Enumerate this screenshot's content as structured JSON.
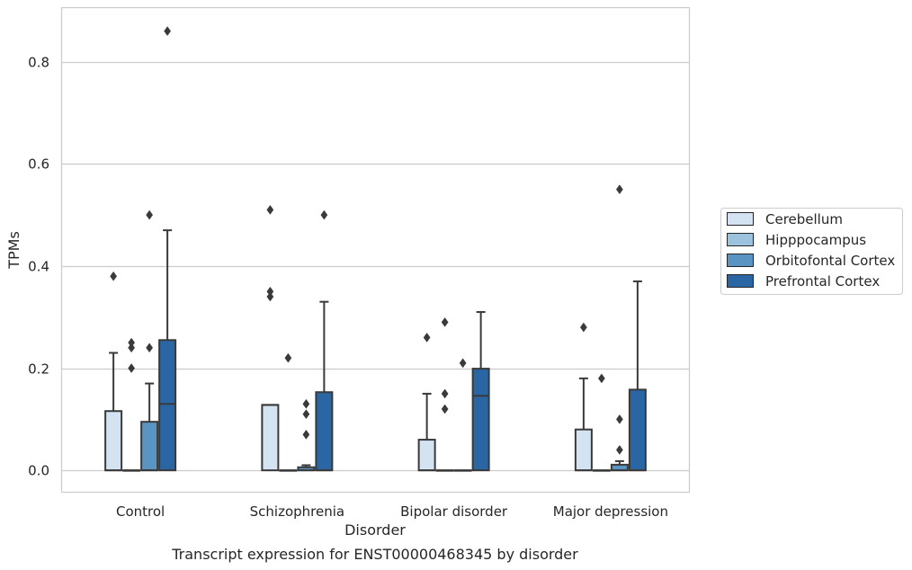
{
  "chart_data": {
    "type": "box",
    "caption": "Transcript expression for ENST00000468345 by disorder",
    "xlabel": "Disorder",
    "ylabel": "TPMs",
    "ylim": [
      -0.042,
      0.905
    ],
    "yticks": [
      0.0,
      0.2,
      0.4,
      0.6,
      0.8
    ],
    "ytick_labels": [
      "0.0",
      "0.2",
      "0.4",
      "0.6",
      "0.8"
    ],
    "grid": true,
    "legend_position": "right",
    "categories": [
      "Control",
      "Schizophrenia",
      "Bipolar disorder",
      "Major depression"
    ],
    "series": [
      {
        "name": "Cerebellum",
        "color": "#d4e3f1",
        "boxes": [
          {
            "q1": 0.0,
            "median": 0.0,
            "q3": 0.116,
            "whisker_low": 0.0,
            "whisker_high": 0.23,
            "outliers": [
              0.38
            ]
          },
          {
            "q1": 0.0,
            "median": 0.128,
            "q3": 0.128,
            "whisker_low": 0.0,
            "whisker_high": 0.128,
            "outliers": [
              0.51,
              0.35,
              0.34
            ]
          },
          {
            "q1": 0.0,
            "median": 0.0,
            "q3": 0.06,
            "whisker_low": 0.0,
            "whisker_high": 0.15,
            "outliers": [
              0.26
            ]
          },
          {
            "q1": 0.0,
            "median": 0.0,
            "q3": 0.08,
            "whisker_low": 0.0,
            "whisker_high": 0.18,
            "outliers": [
              0.28
            ]
          }
        ]
      },
      {
        "name": "Hipppocampus",
        "color": "#9cc3de",
        "boxes": [
          {
            "q1": 0.0,
            "median": 0.0,
            "q3": 0.0,
            "whisker_low": 0.0,
            "whisker_high": 0.0,
            "outliers": [
              0.25,
              0.24,
              0.2
            ]
          },
          {
            "q1": 0.0,
            "median": 0.0,
            "q3": 0.0,
            "whisker_low": 0.0,
            "whisker_high": 0.0,
            "outliers": [
              0.22
            ]
          },
          {
            "q1": 0.0,
            "median": 0.0,
            "q3": 0.0,
            "whisker_low": 0.0,
            "whisker_high": 0.0,
            "outliers": [
              0.29,
              0.15,
              0.12
            ]
          },
          {
            "q1": 0.0,
            "median": 0.0,
            "q3": 0.0,
            "whisker_low": 0.0,
            "whisker_high": 0.0,
            "outliers": [
              0.18
            ]
          }
        ]
      },
      {
        "name": "Orbitofontal Cortex",
        "color": "#5a94c2",
        "boxes": [
          {
            "q1": 0.0,
            "median": 0.0,
            "q3": 0.095,
            "whisker_low": 0.0,
            "whisker_high": 0.17,
            "outliers": [
              0.5,
              0.24
            ]
          },
          {
            "q1": 0.0,
            "median": 0.0,
            "q3": 0.006,
            "whisker_low": 0.0,
            "whisker_high": 0.01,
            "outliers": [
              0.13,
              0.11,
              0.07
            ]
          },
          {
            "q1": 0.0,
            "median": 0.0,
            "q3": 0.0,
            "whisker_low": 0.0,
            "whisker_high": 0.0,
            "outliers": [
              0.21
            ]
          },
          {
            "q1": 0.0,
            "median": 0.0,
            "q3": 0.011,
            "whisker_low": 0.0,
            "whisker_high": 0.018,
            "outliers": [
              0.55,
              0.1,
              0.04
            ]
          }
        ]
      },
      {
        "name": "Prefrontal Cortex",
        "color": "#2a66a4",
        "boxes": [
          {
            "q1": 0.0,
            "median": 0.13,
            "q3": 0.255,
            "whisker_low": 0.0,
            "whisker_high": 0.47,
            "outliers": [
              0.86
            ]
          },
          {
            "q1": 0.0,
            "median": 0.0,
            "q3": 0.153,
            "whisker_low": 0.0,
            "whisker_high": 0.33,
            "outliers": [
              0.5
            ]
          },
          {
            "q1": 0.0,
            "median": 0.146,
            "q3": 0.199,
            "whisker_low": 0.0,
            "whisker_high": 0.31,
            "outliers": []
          },
          {
            "q1": 0.0,
            "median": 0.0,
            "q3": 0.158,
            "whisker_low": 0.0,
            "whisker_high": 0.37,
            "outliers": []
          }
        ]
      }
    ]
  }
}
